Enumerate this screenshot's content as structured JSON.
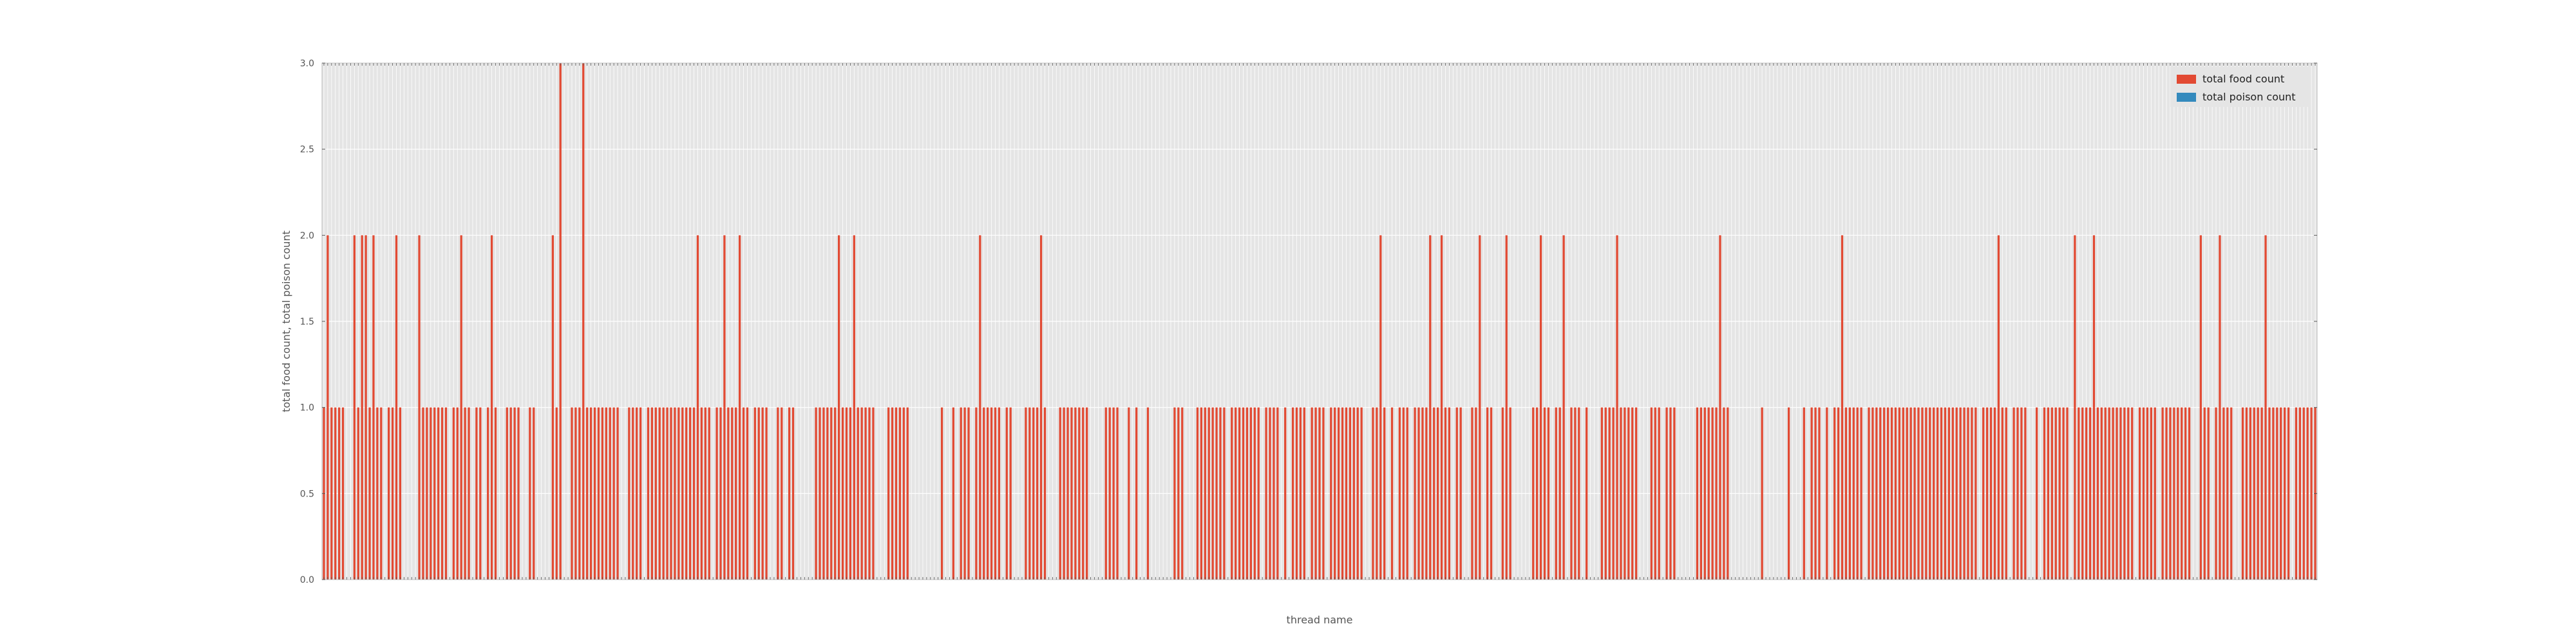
{
  "chart_data": {
    "type": "bar",
    "xlabel": "thread name",
    "ylabel": "total food count, total poison count",
    "ylim": [
      0,
      3
    ],
    "yticks": [
      "0.0",
      "0.5",
      "1.0",
      "1.5",
      "2.0",
      "2.5",
      "3.0"
    ],
    "legend_position": "top-right",
    "grid": true,
    "colors": {
      "food": "#e24a33",
      "poison": "#348abd",
      "plot_bg": "#e5e5e5",
      "grid": "#ffffff"
    },
    "series": [
      {
        "name": "total food count",
        "values": [
          1,
          2,
          1,
          1,
          1,
          1,
          0,
          0,
          2,
          1,
          2,
          2,
          1,
          2,
          1,
          1,
          0,
          1,
          1,
          2,
          1,
          0,
          0,
          0,
          0,
          2,
          1,
          1,
          1,
          1,
          1,
          1,
          1,
          0,
          1,
          1,
          2,
          1,
          1,
          0,
          1,
          1,
          0,
          1,
          2,
          1,
          0,
          0,
          1,
          1,
          1,
          1,
          0,
          0,
          1,
          1,
          0,
          0,
          0,
          0,
          2,
          1,
          3,
          0,
          0,
          1,
          1,
          1,
          3,
          1,
          1,
          1,
          1,
          1,
          1,
          1,
          1,
          1,
          0,
          0,
          1,
          1,
          1,
          1,
          0,
          1,
          1,
          1,
          1,
          1,
          1,
          1,
          1,
          1,
          1,
          1,
          1,
          1,
          2,
          1,
          1,
          1,
          0,
          1,
          1,
          2,
          1,
          1,
          1,
          2,
          1,
          1,
          0,
          1,
          1,
          1,
          1,
          0,
          0,
          1,
          1,
          0,
          1,
          1,
          0,
          0,
          0,
          0,
          0,
          1,
          1,
          1,
          1,
          1,
          1,
          2,
          1,
          1,
          1,
          2,
          1,
          1,
          1,
          1,
          1,
          0,
          0,
          0,
          1,
          1,
          1,
          1,
          1,
          1,
          0,
          0,
          0,
          0,
          0,
          0,
          0,
          0,
          1,
          0,
          0,
          1,
          0,
          1,
          1,
          1,
          0,
          1,
          2,
          1,
          1,
          1,
          1,
          1,
          0,
          1,
          1,
          0,
          0,
          0,
          1,
          1,
          1,
          1,
          2,
          1,
          0,
          0,
          0,
          1,
          1,
          1,
          1,
          1,
          1,
          1,
          1,
          0,
          0,
          0,
          0,
          1,
          1,
          1,
          1,
          0,
          0,
          1,
          0,
          1,
          0,
          0,
          1,
          0,
          0,
          0,
          0,
          0,
          0,
          1,
          1,
          1,
          0,
          0,
          0,
          1,
          1,
          1,
          1,
          1,
          1,
          1,
          1,
          0,
          1,
          1,
          1,
          1,
          1,
          1,
          1,
          1,
          0,
          1,
          1,
          1,
          1,
          0,
          1,
          0,
          1,
          1,
          1,
          1,
          0,
          1,
          1,
          1,
          1,
          0,
          1,
          1,
          1,
          1,
          1,
          1,
          1,
          1,
          1,
          0,
          0,
          1,
          1,
          2,
          1,
          0,
          1,
          0,
          1,
          1,
          1,
          0,
          1,
          1,
          1,
          1,
          2,
          1,
          1,
          2,
          1,
          1,
          0,
          1,
          1,
          0,
          0,
          1,
          1,
          2,
          0,
          1,
          1,
          0,
          0,
          1,
          2,
          1,
          0,
          0,
          0,
          0,
          0,
          1,
          1,
          2,
          1,
          1,
          0,
          1,
          1,
          2,
          0,
          1,
          1,
          1,
          0,
          1,
          0,
          0,
          0,
          1,
          1,
          1,
          1,
          2,
          1,
          1,
          1,
          1,
          1,
          0,
          0,
          0,
          1,
          1,
          1,
          0,
          1,
          1,
          1,
          0,
          0,
          0,
          0,
          0,
          1,
          1,
          1,
          1,
          1,
          1,
          2,
          1,
          1,
          0,
          0,
          0,
          0,
          0,
          0,
          0,
          0,
          1,
          0,
          0,
          0,
          0,
          0,
          0,
          1,
          0,
          0,
          0,
          1,
          0,
          1,
          1,
          1,
          0,
          1,
          0,
          1,
          1,
          2,
          1,
          1,
          1,
          1,
          1,
          0,
          1,
          1,
          1,
          1,
          1,
          1,
          1,
          1,
          1,
          1,
          1,
          1,
          1,
          1,
          1,
          1,
          1,
          1,
          1,
          1,
          1,
          1,
          1,
          1,
          1,
          1,
          1,
          1,
          1,
          0,
          1,
          1,
          1,
          1,
          2,
          1,
          1,
          0,
          1,
          1,
          1,
          1,
          0,
          0,
          1,
          0,
          1,
          1,
          1,
          1,
          1,
          1,
          1,
          0,
          2,
          1,
          1,
          1,
          1,
          2,
          1,
          1,
          1,
          1,
          1,
          1,
          1,
          1,
          1,
          1,
          0,
          1,
          1,
          1,
          1,
          1,
          0,
          1,
          1,
          1,
          1,
          1,
          1,
          1,
          1,
          0,
          0,
          2,
          1,
          1,
          0,
          1,
          2,
          1,
          1,
          1,
          0,
          0,
          1,
          1,
          1,
          1,
          1,
          1,
          2,
          1,
          1,
          1,
          1,
          1,
          1,
          0,
          1,
          1,
          1,
          1,
          1,
          1
        ]
      },
      {
        "name": "total poison count",
        "values": []
      }
    ]
  }
}
